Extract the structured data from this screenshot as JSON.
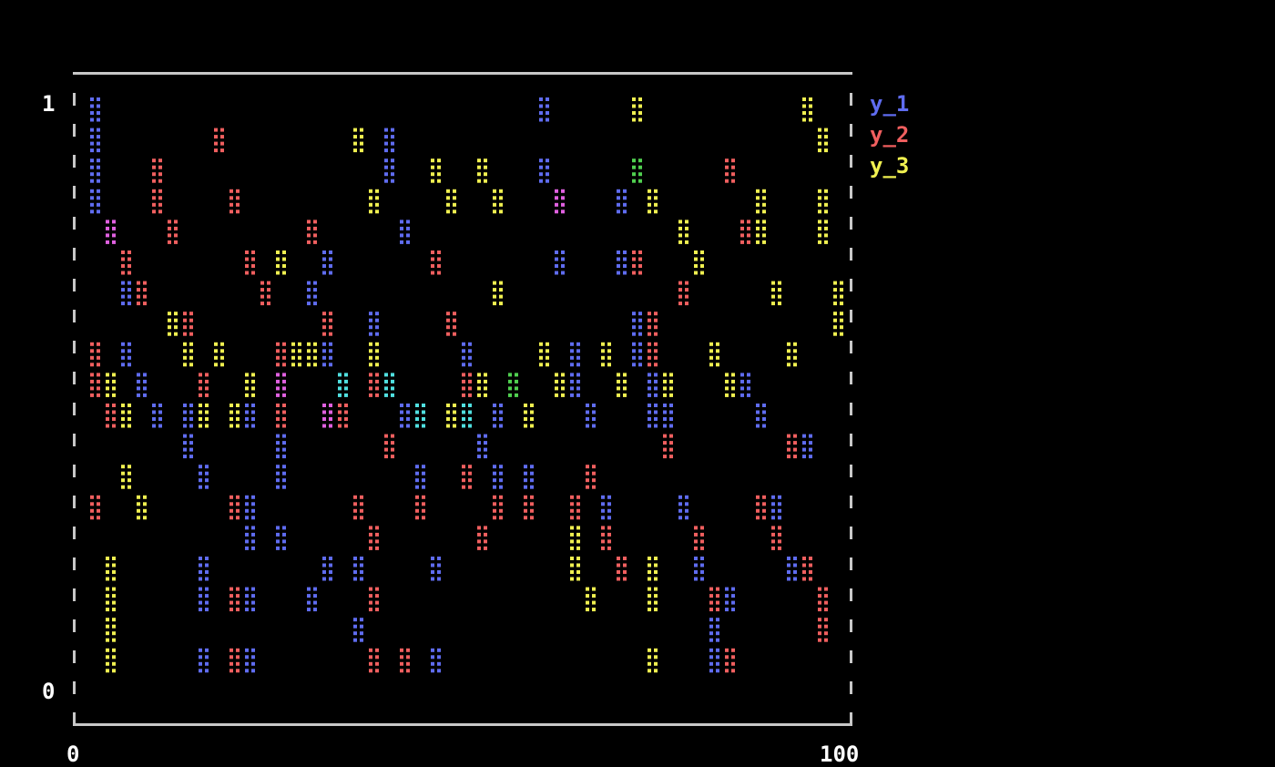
{
  "chart_data": {
    "type": "scatter",
    "title": "",
    "xlabel": "",
    "ylabel": "",
    "xlim": [
      0,
      100
    ],
    "ylim": [
      0,
      1
    ],
    "x_ticks": [
      "0",
      "100"
    ],
    "y_ticks": [
      "1",
      "0"
    ],
    "grid": false,
    "legend_position": "right",
    "overlap_colors": {
      "y_1+y_2": "#e060e0",
      "y_1+y_3": "#50e0e0",
      "y_2+y_3": "#50d050",
      "all": "#ffffff"
    },
    "series": [
      {
        "name": "y_1",
        "color": "#5f6cf0",
        "points": [
          [
            1,
            1.0
          ],
          [
            1,
            0.95
          ],
          [
            1,
            0.9
          ],
          [
            1,
            0.85
          ],
          [
            2,
            0.8
          ],
          [
            4,
            0.7
          ],
          [
            5,
            0.6
          ],
          [
            7,
            0.55
          ],
          [
            9,
            0.5
          ],
          [
            12,
            0.45
          ],
          [
            13,
            0.4
          ],
          [
            14,
            0.35
          ],
          [
            15,
            0.2
          ],
          [
            15,
            0.15
          ],
          [
            15,
            0.05
          ],
          [
            20,
            0.5
          ],
          [
            21,
            0.45
          ],
          [
            20,
            0.3
          ],
          [
            21,
            0.25
          ],
          [
            20,
            0.15
          ],
          [
            20,
            0.05
          ],
          [
            25,
            0.55
          ],
          [
            26,
            0.4
          ],
          [
            25,
            0.35
          ],
          [
            24,
            0.25
          ],
          [
            31,
            0.75
          ],
          [
            30,
            0.7
          ],
          [
            32,
            0.6
          ],
          [
            33,
            0.55
          ],
          [
            32,
            0.45
          ],
          [
            31,
            0.2
          ],
          [
            30,
            0.15
          ],
          [
            35,
            0.2
          ],
          [
            36,
            0.1
          ],
          [
            38,
            0.65
          ],
          [
            39,
            0.55
          ],
          [
            40,
            0.95
          ],
          [
            39,
            0.9
          ],
          [
            41,
            0.8
          ],
          [
            42,
            0.5
          ],
          [
            43,
            0.45
          ],
          [
            44,
            0.35
          ],
          [
            45,
            0.2
          ],
          [
            46,
            0.05
          ],
          [
            50,
            0.6
          ],
          [
            51,
            0.5
          ],
          [
            53,
            0.4
          ],
          [
            54,
            0.35
          ],
          [
            55,
            0.45
          ],
          [
            58,
            0.35
          ],
          [
            60,
            0.98
          ],
          [
            61,
            0.9
          ],
          [
            62,
            0.85
          ],
          [
            63,
            0.75
          ],
          [
            64,
            0.6
          ],
          [
            65,
            0.55
          ],
          [
            66,
            0.5
          ],
          [
            68,
            0.3
          ],
          [
            70,
            0.85
          ],
          [
            71,
            0.75
          ],
          [
            72,
            0.65
          ],
          [
            73,
            0.6
          ],
          [
            75,
            0.55
          ],
          [
            76,
            0.5
          ],
          [
            78,
            0.45
          ],
          [
            80,
            0.3
          ],
          [
            82,
            0.2
          ],
          [
            83,
            0.1
          ],
          [
            84,
            0.05
          ],
          [
            86,
            0.15
          ],
          [
            88,
            0.55
          ],
          [
            90,
            0.45
          ],
          [
            92,
            0.3
          ],
          [
            94,
            0.2
          ],
          [
            96,
            0.4
          ]
        ]
      },
      {
        "name": "y_2",
        "color": "#f05f5f",
        "points": [
          [
            1,
            0.6
          ],
          [
            1,
            0.55
          ],
          [
            2,
            0.5
          ],
          [
            1,
            0.3
          ],
          [
            1,
            0.3
          ],
          [
            3,
            0.8
          ],
          [
            5,
            0.75
          ],
          [
            6,
            0.7
          ],
          [
            8,
            0.9
          ],
          [
            9,
            0.85
          ],
          [
            11,
            0.8
          ],
          [
            12,
            0.65
          ],
          [
            14,
            0.55
          ],
          [
            17,
            0.95
          ],
          [
            18,
            0.85
          ],
          [
            18,
            0.3
          ],
          [
            18,
            0.15
          ],
          [
            18,
            0.05
          ],
          [
            20,
            0.75
          ],
          [
            22,
            0.7
          ],
          [
            24,
            0.6
          ],
          [
            25,
            0.55
          ],
          [
            25,
            0.45
          ],
          [
            29,
            0.8
          ],
          [
            31,
            0.65
          ],
          [
            32,
            0.5
          ],
          [
            34,
            0.45
          ],
          [
            36,
            0.3
          ],
          [
            37,
            0.25
          ],
          [
            37,
            0.15
          ],
          [
            37,
            0.05
          ],
          [
            38,
            0.55
          ],
          [
            40,
            0.4
          ],
          [
            41,
            0.05
          ],
          [
            43,
            0.3
          ],
          [
            46,
            0.75
          ],
          [
            48,
            0.65
          ],
          [
            50,
            0.55
          ],
          [
            51,
            0.35
          ],
          [
            52,
            0.25
          ],
          [
            54,
            0.3
          ],
          [
            57,
            0.55
          ],
          [
            59,
            0.3
          ],
          [
            63,
            0.85
          ],
          [
            65,
            0.3
          ],
          [
            67,
            0.35
          ],
          [
            68,
            0.25
          ],
          [
            70,
            0.2
          ],
          [
            72,
            0.9
          ],
          [
            73,
            0.75
          ],
          [
            74,
            0.65
          ],
          [
            76,
            0.6
          ],
          [
            77,
            0.4
          ],
          [
            80,
            0.7
          ],
          [
            82,
            0.25
          ],
          [
            84,
            0.15
          ],
          [
            85,
            0.05
          ],
          [
            86,
            0.9
          ],
          [
            88,
            0.8
          ],
          [
            90,
            0.3
          ],
          [
            91,
            0.25
          ],
          [
            93,
            0.4
          ],
          [
            95,
            0.2
          ],
          [
            97,
            0.15
          ],
          [
            98,
            0.1
          ]
        ]
      },
      {
        "name": "y_3",
        "color": "#f0f050",
        "points": [
          [
            2,
            0.55
          ],
          [
            3,
            0.2
          ],
          [
            3,
            0.15
          ],
          [
            3,
            0.1
          ],
          [
            3,
            0.05
          ],
          [
            4,
            0.45
          ],
          [
            5,
            0.5
          ],
          [
            5,
            0.35
          ],
          [
            6,
            0.3
          ],
          [
            10,
            0.65
          ],
          [
            12,
            0.6
          ],
          [
            14,
            0.5
          ],
          [
            17,
            0.6
          ],
          [
            19,
            0.45
          ],
          [
            21,
            0.55
          ],
          [
            24,
            0.75
          ],
          [
            27,
            0.6
          ],
          [
            30,
            0.6
          ],
          [
            33,
            0.55
          ],
          [
            36,
            0.95
          ],
          [
            37,
            0.85
          ],
          [
            38,
            0.6
          ],
          [
            40,
            0.55
          ],
          [
            43,
            0.5
          ],
          [
            46,
            0.9
          ],
          [
            47,
            0.85
          ],
          [
            48,
            0.5
          ],
          [
            50,
            0.45
          ],
          [
            52,
            0.55
          ],
          [
            53,
            0.9
          ],
          [
            54,
            0.85
          ],
          [
            55,
            0.7
          ],
          [
            56,
            0.55
          ],
          [
            58,
            0.45
          ],
          [
            60,
            0.6
          ],
          [
            62,
            0.55
          ],
          [
            64,
            0.25
          ],
          [
            65,
            0.2
          ],
          [
            66,
            0.15
          ],
          [
            68,
            0.6
          ],
          [
            70,
            0.55
          ],
          [
            72,
            0.98
          ],
          [
            73,
            0.9
          ],
          [
            74,
            0.85
          ],
          [
            75,
            0.2
          ],
          [
            75,
            0.15
          ],
          [
            76,
            0.05
          ],
          [
            78,
            0.55
          ],
          [
            80,
            0.8
          ],
          [
            82,
            0.75
          ],
          [
            84,
            0.6
          ],
          [
            86,
            0.55
          ],
          [
            89,
            0.85
          ],
          [
            90,
            0.8
          ],
          [
            92,
            0.7
          ],
          [
            94,
            0.6
          ],
          [
            96,
            1.0
          ],
          [
            97,
            0.95
          ],
          [
            98,
            0.85
          ],
          [
            98,
            0.8
          ],
          [
            99,
            0.7
          ],
          [
            99,
            0.65
          ]
        ]
      }
    ]
  }
}
